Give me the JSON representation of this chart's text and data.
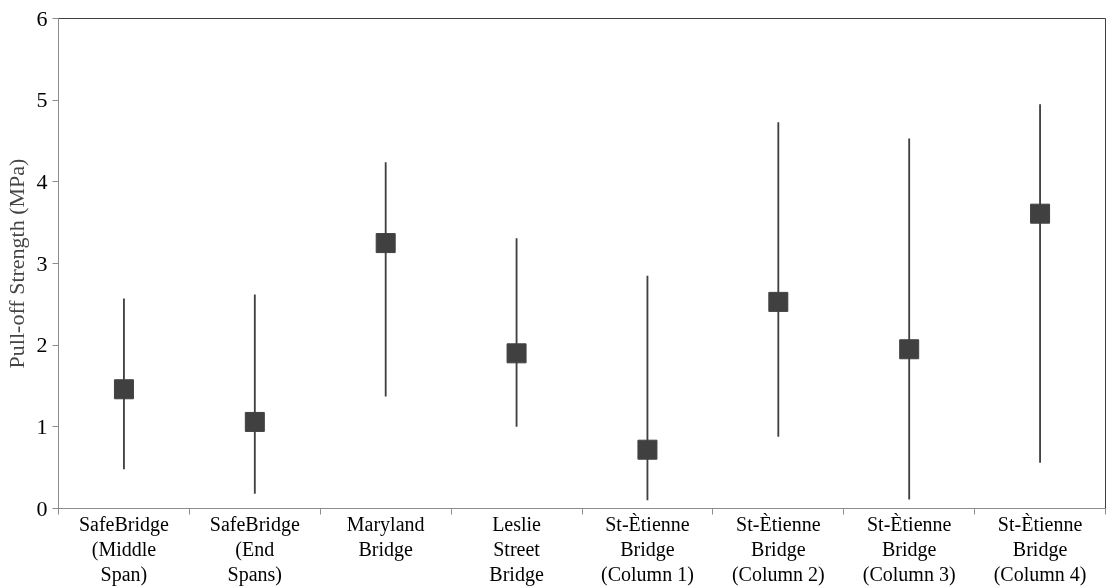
{
  "chart_data": {
    "type": "scatter",
    "ylabel": "Pull-off Strength (MPa)",
    "categories": [
      "SafeBridge\n(Middle\nSpan)",
      "SafeBridge\n(End\nSpans)",
      "Maryland\nBridge",
      "Leslie\nStreet\nBridge",
      "St-Ètienne\nBridge\n(Column 1)",
      "St-Ètienne\nBridge\n(Column 2)",
      "St-Ètienne\nBridge\n(Column 3)",
      "St-Ètienne\nBridge\n(Column 4)"
    ],
    "series": [
      {
        "color": "#404040",
        "values": [
          1.46,
          1.06,
          3.25,
          1.9,
          0.72,
          2.53,
          1.95,
          3.61
        ],
        "errors": [
          [
            0.48,
            2.57
          ],
          [
            0.18,
            2.62
          ],
          [
            1.37,
            4.24
          ],
          [
            1.0,
            3.31
          ],
          [
            0.1,
            2.85
          ],
          [
            0.88,
            4.73
          ],
          [
            0.11,
            4.53
          ],
          [
            0.56,
            4.95
          ]
        ]
      }
    ],
    "ylim": [
      0,
      6
    ],
    "yticks": [
      0,
      1,
      2,
      3,
      4,
      5,
      6
    ],
    "marker": "square",
    "grid": false
  }
}
